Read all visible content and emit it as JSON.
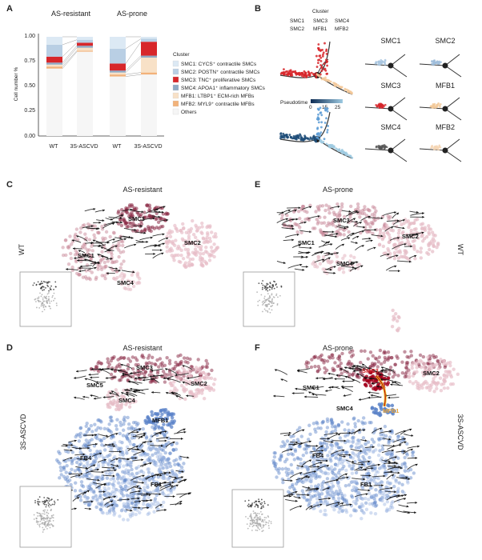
{
  "panel_letters": {
    "A": "A",
    "B": "B",
    "C": "C",
    "D": "D",
    "E": "E",
    "F": "F"
  },
  "panelA": {
    "group_labels": [
      "AS-resistant",
      "AS-prone"
    ],
    "ylabel": "Cell number %",
    "yticks": [
      "1.00",
      "0.75",
      "0.50",
      "0.25",
      "0.00"
    ],
    "xticks": [
      "WT",
      "3S-ASCVD",
      "WT",
      "3S-ASCVD"
    ],
    "legend_title": "Cluster",
    "legend": [
      {
        "label": "SMC1: CYCS⁺ contractile SMCs",
        "color": "#dce9f4"
      },
      {
        "label": "SMC2: POSTN⁺ contractile SMCs",
        "color": "#b9cfe4"
      },
      {
        "label": "SMC3: TNC⁺ proliferative SMCs",
        "color": "#d7262a"
      },
      {
        "label": "SMC4: APOA1⁺ inflammatory SMCs",
        "color": "#8fa9c4"
      },
      {
        "label": "MFB1: LTBP1⁺ ECM-rich MFBs",
        "color": "#f8e1c7"
      },
      {
        "label": "MFB2: MYL9⁺ contractile MFBs",
        "color": "#f2b27a"
      },
      {
        "label": "Others",
        "color": "#f6f6f6"
      }
    ]
  },
  "chart_data": {
    "type": "bar",
    "stacked": true,
    "categories": [
      "WT",
      "3S-ASCVD",
      "WT",
      "3S-ASCVD"
    ],
    "groups": [
      "AS-resistant",
      "AS-resistant",
      "AS-prone",
      "AS-prone"
    ],
    "ylabel": "Cell number %",
    "ylim": [
      0,
      1
    ],
    "series": [
      {
        "name": "Others",
        "values": [
          0.68,
          0.85,
          0.6,
          0.62
        ],
        "color": "#f6f6f6"
      },
      {
        "name": "MFB2: MYL9⁺ contractile MFBs",
        "values": [
          0.02,
          0.01,
          0.02,
          0.02
        ],
        "color": "#f2b27a"
      },
      {
        "name": "MFB1: LTBP1⁺ ECM-rich MFBs",
        "values": [
          0.02,
          0.03,
          0.02,
          0.15
        ],
        "color": "#f8e1c7"
      },
      {
        "name": "SMC4: APOA1⁺ inflammatory SMCs",
        "values": [
          0.02,
          0.02,
          0.02,
          0.02
        ],
        "color": "#8fa9c4"
      },
      {
        "name": "SMC3: TNC⁺ proliferative SMCs",
        "values": [
          0.06,
          0.03,
          0.07,
          0.14
        ],
        "color": "#d7262a"
      },
      {
        "name": "SMC2: POSTN⁺ contractile SMCs",
        "values": [
          0.12,
          0.03,
          0.15,
          0.03
        ],
        "color": "#b9cfe4"
      },
      {
        "name": "SMC1: CYCS⁺ contractile SMCs",
        "values": [
          0.08,
          0.03,
          0.12,
          0.02
        ],
        "color": "#dce9f4"
      }
    ]
  },
  "panelB": {
    "legend_title": "Cluster",
    "legend_items": [
      "SMC1",
      "SMC3",
      "SMC4",
      "SMC2",
      "MFB1",
      "MFB2"
    ],
    "pseudotime_label": "Pseudotime",
    "pseudotime_ticks": [
      "0",
      "15",
      "25"
    ],
    "small_titles": [
      "SMC1",
      "SMC2",
      "SMC3",
      "MFB1",
      "SMC4",
      "MFB2"
    ],
    "colors": {
      "SMC1": "#a9c6e0",
      "SMC2": "#9fbddb",
      "SMC3": "#d7262a",
      "MFB1": "#f3c99a",
      "SMC4": "#333333",
      "MFB2": "#f5d6b5"
    }
  },
  "panelC": {
    "title": "AS-resistant",
    "side": "WT",
    "clusters": [
      "SMC3",
      "SMC2",
      "SMC1",
      "SMC4"
    ]
  },
  "panelE": {
    "title": "AS-prone",
    "side": "WT",
    "clusters": [
      "SMC3",
      "SMC1",
      "SMC2",
      "SMC4"
    ]
  },
  "panelD": {
    "title": "AS-resistant",
    "side": "3S-ASCVD",
    "clusters": [
      "SMC3",
      "SMC5",
      "SMC4",
      "SMC2",
      "MFB1",
      "FB4",
      "FB1"
    ]
  },
  "panelF": {
    "title": "AS-prone",
    "side": "3S-ASCVD",
    "clusters": [
      "SMC3",
      "SMC1",
      "SMC4",
      "SMC2",
      "MFB1",
      "FB4",
      "FB1"
    ]
  }
}
